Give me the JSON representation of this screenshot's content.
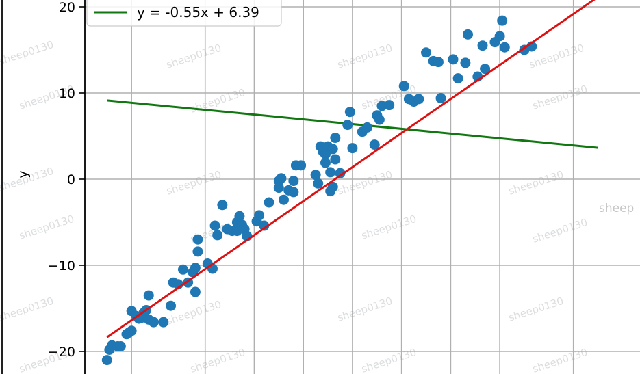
{
  "watermark": "sheep0130",
  "edge_watermark": "sheep",
  "chart_data": {
    "type": "scatter",
    "ylabel": "y",
    "xlabel": "",
    "ylim": [
      -22,
      21
    ],
    "xlim": [
      -5.45,
      5.48
    ],
    "xgrid": [
      -4.5,
      -3.0,
      -2.0,
      -1.0,
      0.0,
      1.0,
      2.0,
      3.0,
      4.5
    ],
    "yticks": [
      -20,
      -10,
      0,
      10,
      20
    ],
    "ytick_labels": [
      "−20",
      "−10",
      "0",
      "10",
      "20"
    ],
    "grid": true,
    "legend_position": "top-left",
    "colors": {
      "points": "#1f77b4",
      "fit_line": "#dd1111",
      "guess_line": "#117711",
      "grid": "#b0b0b0"
    },
    "scatter_series": {
      "points": [
        [
          -5.0,
          -21.0
        ],
        [
          -4.95,
          -19.8
        ],
        [
          -4.9,
          -19.3
        ],
        [
          -4.78,
          -19.4
        ],
        [
          -4.72,
          -19.4
        ],
        [
          -4.6,
          -18.0
        ],
        [
          -4.55,
          -17.8
        ],
        [
          -4.5,
          -17.6
        ],
        [
          -4.5,
          -15.3
        ],
        [
          -4.4,
          -15.9
        ],
        [
          -4.35,
          -16.2
        ],
        [
          -4.3,
          -16.1
        ],
        [
          -4.25,
          -15.5
        ],
        [
          -4.2,
          -15.2
        ],
        [
          -4.15,
          -16.3
        ],
        [
          -4.05,
          -16.6
        ],
        [
          -4.15,
          -13.5
        ],
        [
          -3.85,
          -16.6
        ],
        [
          -3.7,
          -14.7
        ],
        [
          -3.65,
          -12.0
        ],
        [
          -3.55,
          -12.2
        ],
        [
          -3.45,
          -10.5
        ],
        [
          -3.35,
          -12.0
        ],
        [
          -3.25,
          -10.8
        ],
        [
          -3.2,
          -10.3
        ],
        [
          -3.2,
          -13.1
        ],
        [
          -3.15,
          -8.4
        ],
        [
          -3.15,
          -7.0
        ],
        [
          -2.95,
          -9.8
        ],
        [
          -2.85,
          -10.4
        ],
        [
          -2.8,
          -5.4
        ],
        [
          -2.75,
          -6.5
        ],
        [
          -2.65,
          -3.0
        ],
        [
          -2.55,
          -5.8
        ],
        [
          -2.45,
          -6.0
        ],
        [
          -2.35,
          -6.0
        ],
        [
          -2.35,
          -5.0
        ],
        [
          -2.3,
          -4.3
        ],
        [
          -2.25,
          -5.3
        ],
        [
          -2.2,
          -5.8
        ],
        [
          -2.15,
          -6.6
        ],
        [
          -1.95,
          -4.9
        ],
        [
          -1.9,
          -4.2
        ],
        [
          -1.8,
          -5.4
        ],
        [
          -1.7,
          -2.7
        ],
        [
          -1.5,
          -1.0
        ],
        [
          -1.5,
          -0.2
        ],
        [
          -1.45,
          0.1
        ],
        [
          -1.4,
          -2.4
        ],
        [
          -1.3,
          -1.3
        ],
        [
          -1.2,
          -1.5
        ],
        [
          -1.2,
          -0.2
        ],
        [
          -1.15,
          1.6
        ],
        [
          -1.05,
          1.6
        ],
        [
          -0.75,
          0.5
        ],
        [
          -0.7,
          -0.5
        ],
        [
          -0.65,
          3.8
        ],
        [
          -0.6,
          3.2
        ],
        [
          -0.55,
          2.9
        ],
        [
          -0.55,
          1.9
        ],
        [
          -0.5,
          3.8
        ],
        [
          -0.45,
          0.8
        ],
        [
          -0.45,
          -1.4
        ],
        [
          -0.4,
          -0.9
        ],
        [
          -0.4,
          3.5
        ],
        [
          -0.35,
          2.3
        ],
        [
          -0.35,
          4.8
        ],
        [
          -0.25,
          0.7
        ],
        [
          -0.1,
          6.3
        ],
        [
          -0.05,
          7.8
        ],
        [
          0.0,
          3.6
        ],
        [
          0.2,
          5.5
        ],
        [
          0.3,
          6.0
        ],
        [
          0.45,
          4.0
        ],
        [
          0.5,
          7.4
        ],
        [
          0.55,
          6.9
        ],
        [
          0.6,
          8.5
        ],
        [
          0.75,
          8.6
        ],
        [
          1.05,
          10.8
        ],
        [
          1.15,
          9.3
        ],
        [
          1.25,
          9.0
        ],
        [
          1.35,
          9.3
        ],
        [
          1.5,
          14.7
        ],
        [
          1.65,
          13.7
        ],
        [
          1.75,
          13.6
        ],
        [
          1.8,
          9.4
        ],
        [
          2.05,
          13.9
        ],
        [
          2.15,
          11.7
        ],
        [
          2.3,
          13.5
        ],
        [
          2.35,
          16.8
        ],
        [
          2.55,
          11.9
        ],
        [
          2.65,
          15.5
        ],
        [
          2.7,
          12.8
        ],
        [
          2.9,
          15.9
        ],
        [
          3.0,
          16.6
        ],
        [
          3.05,
          18.4
        ],
        [
          3.1,
          15.3
        ],
        [
          3.5,
          15.0
        ],
        [
          3.65,
          15.4
        ]
      ]
    },
    "line_series": [
      {
        "name": "y = -0.55x + 6.39",
        "slope": -0.55,
        "intercept": 6.39,
        "x": [
          -5.0,
          5.0
        ],
        "role": "guess"
      },
      {
        "name": "",
        "slope": 3.95,
        "intercept": 1.4,
        "x": [
          -5.0,
          5.0
        ],
        "role": "fit"
      }
    ]
  }
}
